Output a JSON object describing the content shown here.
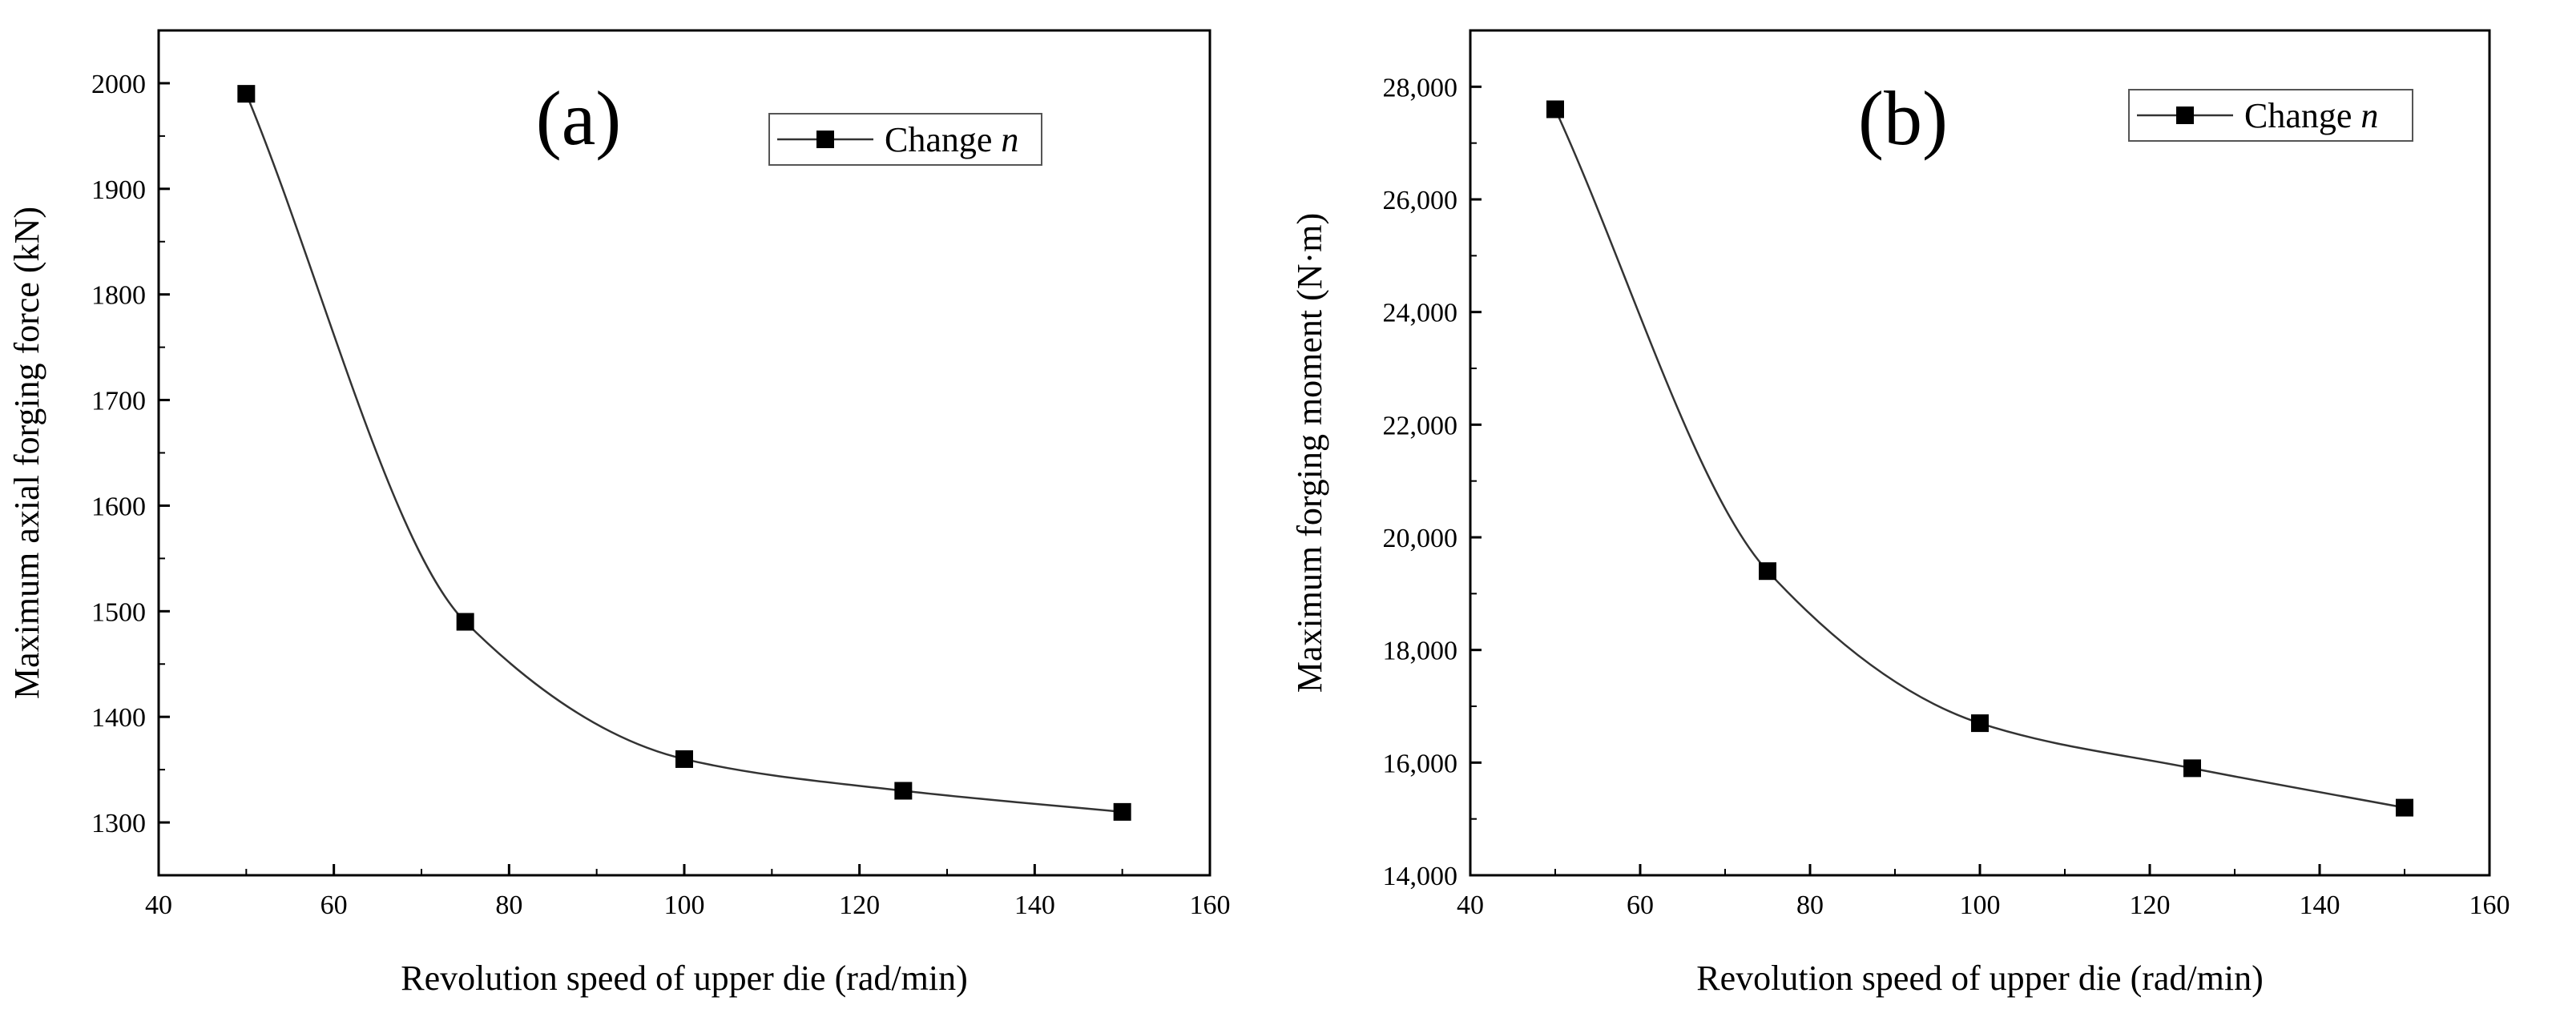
{
  "chart_data": [
    {
      "type": "line",
      "panel_label": "(a)",
      "x": [
        50,
        75,
        100,
        125,
        150
      ],
      "series": [
        {
          "name": "Change",
          "name_var": "n",
          "values": [
            1990,
            1490,
            1360,
            1330,
            1310
          ]
        }
      ],
      "xlabel": "Revolution speed of upper die (rad/min)",
      "ylabel": "Maximum axial forging force (kN)",
      "xlim": [
        40,
        160
      ],
      "ylim": [
        1250,
        2050
      ],
      "xticks": [
        40,
        60,
        80,
        100,
        120,
        140,
        160
      ],
      "xtick_labels": [
        "40",
        "60",
        "80",
        "100",
        "120",
        "140",
        "160"
      ],
      "yticks": [
        1300,
        1400,
        1500,
        1600,
        1700,
        1800,
        1900,
        2000
      ],
      "ytick_labels": [
        "1300",
        "1400",
        "1500",
        "1600",
        "1700",
        "1800",
        "1900",
        "2000"
      ],
      "legend": "top-right",
      "grid": false
    },
    {
      "type": "line",
      "panel_label": "(b)",
      "x": [
        50,
        75,
        100,
        125,
        150
      ],
      "series": [
        {
          "name": "Change",
          "name_var": "n",
          "values": [
            27600,
            19400,
            16700,
            15900,
            15200
          ]
        }
      ],
      "xlabel": "Revolution speed of upper die (rad/min)",
      "ylabel": "Maximum forging moment (N·m)",
      "xlim": [
        40,
        160
      ],
      "ylim": [
        14000,
        29000
      ],
      "xticks": [
        40,
        60,
        80,
        100,
        120,
        140,
        160
      ],
      "xtick_labels": [
        "40",
        "60",
        "80",
        "100",
        "120",
        "140",
        "160"
      ],
      "yticks": [
        14000,
        16000,
        18000,
        20000,
        22000,
        24000,
        26000,
        28000
      ],
      "ytick_labels": [
        "14,000",
        "16,000",
        "18,000",
        "20,000",
        "22,000",
        "24,000",
        "26,000",
        "28,000"
      ],
      "legend": "top-right",
      "grid": false
    }
  ]
}
